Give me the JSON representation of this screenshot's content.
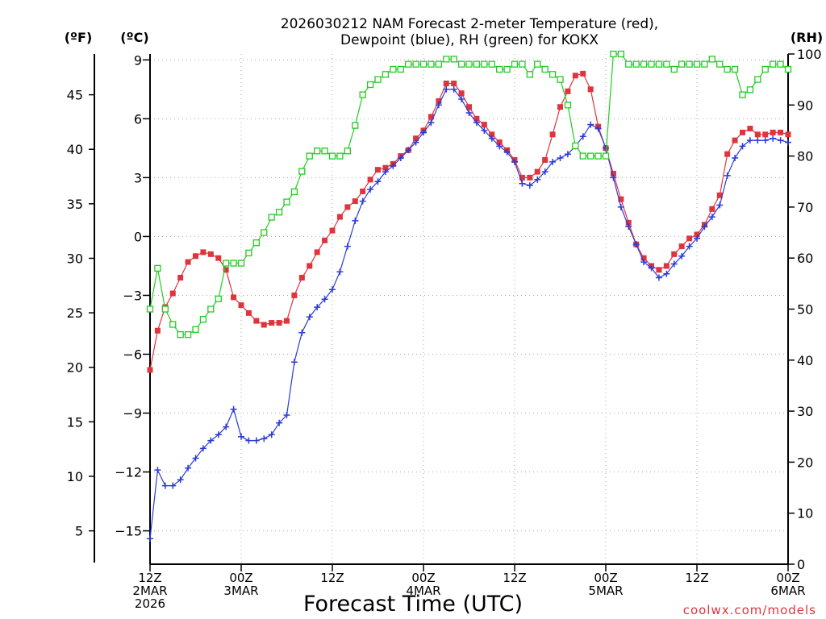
{
  "chart_data": {
    "type": "line",
    "title": "2026030212 NAM Forecast 2-meter Temperature (red),",
    "subtitle": "Dewpoint (blue), RH (green) for KOKX",
    "xlabel": "Forecast Time (UTC)",
    "credit": "coolwx.com/models",
    "units": {
      "fahrenheit": "(ºF)",
      "celsius": "(ºC)",
      "rh": "(RH)"
    },
    "x_unit": "forecast hour",
    "xlim": [
      0,
      84
    ],
    "x_ticks": [
      {
        "x": 0,
        "l1": "12Z",
        "l2": "2MAR",
        "l3": "2026"
      },
      {
        "x": 12,
        "l1": "00Z",
        "l2": "3MAR",
        "l3": ""
      },
      {
        "x": 24,
        "l1": "12Z",
        "l2": "",
        "l3": ""
      },
      {
        "x": 36,
        "l1": "00Z",
        "l2": "4MAR",
        "l3": ""
      },
      {
        "x": 48,
        "l1": "12Z",
        "l2": "",
        "l3": ""
      },
      {
        "x": 60,
        "l1": "00Z",
        "l2": "5MAR",
        "l3": ""
      },
      {
        "x": 72,
        "l1": "12Z",
        "l2": "",
        "l3": ""
      },
      {
        "x": 84,
        "l1": "00Z",
        "l2": "6MAR",
        "l3": ""
      }
    ],
    "y_celsius": {
      "ylim": [
        -16.7,
        9.3
      ],
      "ticks": [
        "9",
        "6",
        "3",
        "0",
        "−3",
        "−6",
        "−9",
        "−12",
        "−15"
      ],
      "tick_values": [
        9,
        6,
        3,
        0,
        -3,
        -6,
        -9,
        -12,
        -15
      ]
    },
    "y_fahrenheit": {
      "ticks": [
        "45",
        "40",
        "35",
        "30",
        "25",
        "20",
        "15",
        "10",
        "5"
      ],
      "tick_values": [
        45,
        40,
        35,
        30,
        25,
        20,
        15,
        10,
        5
      ]
    },
    "y_rh": {
      "ylim": [
        0,
        100
      ],
      "ticks": [
        "100",
        "90",
        "80",
        "70",
        "60",
        "50",
        "40",
        "30",
        "20",
        "10",
        "0"
      ],
      "tick_values": [
        100,
        90,
        80,
        70,
        60,
        50,
        40,
        30,
        20,
        10,
        0
      ]
    },
    "series": [
      {
        "name": "2-meter Temperature",
        "axis": "celsius",
        "color": "#e0343c",
        "marker": "filled-square",
        "values": [
          [
            0,
            -6.8
          ],
          [
            1,
            -4.8
          ],
          [
            2,
            -3.6
          ],
          [
            3,
            -2.9
          ],
          [
            4,
            -2.1
          ],
          [
            5,
            -1.3
          ],
          [
            6,
            -1.0
          ],
          [
            7,
            -0.8
          ],
          [
            8,
            -0.9
          ],
          [
            9,
            -1.1
          ],
          [
            10,
            -1.7
          ],
          [
            11,
            -3.1
          ],
          [
            12,
            -3.5
          ],
          [
            13,
            -3.9
          ],
          [
            14,
            -4.3
          ],
          [
            15,
            -4.5
          ],
          [
            16,
            -4.4
          ],
          [
            17,
            -4.4
          ],
          [
            18,
            -4.3
          ],
          [
            19,
            -3.0
          ],
          [
            20,
            -2.1
          ],
          [
            21,
            -1.5
          ],
          [
            22,
            -0.8
          ],
          [
            23,
            -0.2
          ],
          [
            24,
            0.3
          ],
          [
            25,
            1.0
          ],
          [
            26,
            1.5
          ],
          [
            27,
            1.8
          ],
          [
            28,
            2.3
          ],
          [
            29,
            2.9
          ],
          [
            30,
            3.4
          ],
          [
            31,
            3.5
          ],
          [
            32,
            3.7
          ],
          [
            33,
            4.1
          ],
          [
            34,
            4.4
          ],
          [
            35,
            5.0
          ],
          [
            36,
            5.4
          ],
          [
            37,
            6.1
          ],
          [
            38,
            6.9
          ],
          [
            39,
            7.8
          ],
          [
            40,
            7.8
          ],
          [
            41,
            7.3
          ],
          [
            42,
            6.6
          ],
          [
            43,
            6.0
          ],
          [
            44,
            5.7
          ],
          [
            45,
            5.2
          ],
          [
            46,
            4.8
          ],
          [
            47,
            4.4
          ],
          [
            48,
            3.9
          ],
          [
            49,
            3.0
          ],
          [
            50,
            3.0
          ],
          [
            51,
            3.3
          ],
          [
            52,
            3.9
          ],
          [
            53,
            5.2
          ],
          [
            54,
            6.6
          ],
          [
            55,
            7.4
          ],
          [
            56,
            8.2
          ],
          [
            57,
            8.3
          ],
          [
            58,
            7.5
          ],
          [
            59,
            5.6
          ],
          [
            60,
            4.5
          ],
          [
            61,
            3.2
          ],
          [
            62,
            1.9
          ],
          [
            63,
            0.7
          ],
          [
            64,
            -0.4
          ],
          [
            65,
            -1.1
          ],
          [
            66,
            -1.5
          ],
          [
            67,
            -1.7
          ],
          [
            68,
            -1.5
          ],
          [
            69,
            -0.9
          ],
          [
            70,
            -0.5
          ],
          [
            71,
            -0.1
          ],
          [
            72,
            0.1
          ],
          [
            73,
            0.6
          ],
          [
            74,
            1.4
          ],
          [
            75,
            2.1
          ],
          [
            76,
            4.2
          ],
          [
            77,
            4.9
          ],
          [
            78,
            5.3
          ],
          [
            79,
            5.5
          ],
          [
            80,
            5.2
          ],
          [
            81,
            5.2
          ],
          [
            82,
            5.3
          ],
          [
            83,
            5.3
          ],
          [
            84,
            5.2
          ]
        ]
      },
      {
        "name": "Dewpoint",
        "axis": "celsius",
        "color": "#2b3bd6",
        "marker": "plus",
        "values": [
          [
            0,
            -15.4
          ],
          [
            1,
            -11.9
          ],
          [
            2,
            -12.7
          ],
          [
            3,
            -12.7
          ],
          [
            4,
            -12.4
          ],
          [
            5,
            -11.8
          ],
          [
            6,
            -11.3
          ],
          [
            7,
            -10.8
          ],
          [
            8,
            -10.4
          ],
          [
            9,
            -10.1
          ],
          [
            10,
            -9.7
          ],
          [
            11,
            -8.8
          ],
          [
            12,
            -10.2
          ],
          [
            13,
            -10.4
          ],
          [
            14,
            -10.4
          ],
          [
            15,
            -10.3
          ],
          [
            16,
            -10.1
          ],
          [
            17,
            -9.5
          ],
          [
            18,
            -9.1
          ],
          [
            19,
            -6.4
          ],
          [
            20,
            -4.9
          ],
          [
            21,
            -4.1
          ],
          [
            22,
            -3.6
          ],
          [
            23,
            -3.2
          ],
          [
            24,
            -2.7
          ],
          [
            25,
            -1.8
          ],
          [
            26,
            -0.5
          ],
          [
            27,
            0.8
          ],
          [
            28,
            1.8
          ],
          [
            29,
            2.4
          ],
          [
            30,
            2.8
          ],
          [
            31,
            3.3
          ],
          [
            32,
            3.6
          ],
          [
            33,
            4.0
          ],
          [
            34,
            4.4
          ],
          [
            35,
            4.8
          ],
          [
            36,
            5.3
          ],
          [
            37,
            5.8
          ],
          [
            38,
            6.7
          ],
          [
            39,
            7.5
          ],
          [
            40,
            7.5
          ],
          [
            41,
            7.0
          ],
          [
            42,
            6.3
          ],
          [
            43,
            5.8
          ],
          [
            44,
            5.4
          ],
          [
            45,
            5.0
          ],
          [
            46,
            4.6
          ],
          [
            47,
            4.3
          ],
          [
            48,
            3.8
          ],
          [
            49,
            2.7
          ],
          [
            50,
            2.6
          ],
          [
            51,
            2.9
          ],
          [
            52,
            3.3
          ],
          [
            53,
            3.8
          ],
          [
            54,
            4.0
          ],
          [
            55,
            4.2
          ],
          [
            56,
            4.6
          ],
          [
            57,
            5.1
          ],
          [
            58,
            5.7
          ],
          [
            59,
            5.5
          ],
          [
            60,
            4.5
          ],
          [
            61,
            3.0
          ],
          [
            62,
            1.5
          ],
          [
            63,
            0.5
          ],
          [
            64,
            -0.4
          ],
          [
            65,
            -1.3
          ],
          [
            66,
            -1.6
          ],
          [
            67,
            -2.1
          ],
          [
            68,
            -1.9
          ],
          [
            69,
            -1.4
          ],
          [
            70,
            -1.0
          ],
          [
            71,
            -0.5
          ],
          [
            72,
            -0.1
          ],
          [
            73,
            0.5
          ],
          [
            74,
            1.0
          ],
          [
            75,
            1.6
          ],
          [
            76,
            3.1
          ],
          [
            77,
            4.0
          ],
          [
            78,
            4.6
          ],
          [
            79,
            4.9
          ],
          [
            80,
            4.9
          ],
          [
            81,
            4.9
          ],
          [
            82,
            5.0
          ],
          [
            83,
            4.9
          ],
          [
            84,
            4.8
          ]
        ]
      },
      {
        "name": "RH",
        "axis": "rh",
        "color": "#22cc22",
        "marker": "open-square",
        "values": [
          [
            0,
            50
          ],
          [
            1,
            58
          ],
          [
            2,
            50
          ],
          [
            3,
            47
          ],
          [
            4,
            45
          ],
          [
            5,
            45
          ],
          [
            6,
            46
          ],
          [
            7,
            48
          ],
          [
            8,
            50
          ],
          [
            9,
            52
          ],
          [
            10,
            59
          ],
          [
            11,
            59
          ],
          [
            12,
            59
          ],
          [
            13,
            61
          ],
          [
            14,
            63
          ],
          [
            15,
            65
          ],
          [
            16,
            68
          ],
          [
            17,
            69
          ],
          [
            18,
            71
          ],
          [
            19,
            73
          ],
          [
            20,
            77
          ],
          [
            21,
            80
          ],
          [
            22,
            81
          ],
          [
            23,
            81
          ],
          [
            24,
            80
          ],
          [
            25,
            80
          ],
          [
            26,
            81
          ],
          [
            27,
            86
          ],
          [
            28,
            92
          ],
          [
            29,
            94
          ],
          [
            30,
            95
          ],
          [
            31,
            96
          ],
          [
            32,
            97
          ],
          [
            33,
            97
          ],
          [
            34,
            98
          ],
          [
            35,
            98
          ],
          [
            36,
            98
          ],
          [
            37,
            98
          ],
          [
            38,
            98
          ],
          [
            39,
            99
          ],
          [
            40,
            99
          ],
          [
            41,
            98
          ],
          [
            42,
            98
          ],
          [
            43,
            98
          ],
          [
            44,
            98
          ],
          [
            45,
            98
          ],
          [
            46,
            97
          ],
          [
            47,
            97
          ],
          [
            48,
            98
          ],
          [
            49,
            98
          ],
          [
            50,
            96
          ],
          [
            51,
            98
          ],
          [
            52,
            97
          ],
          [
            53,
            96
          ],
          [
            54,
            95
          ],
          [
            55,
            90
          ],
          [
            56,
            82
          ],
          [
            57,
            80
          ],
          [
            58,
            80
          ],
          [
            59,
            80
          ],
          [
            60,
            80
          ],
          [
            61,
            100
          ],
          [
            62,
            100
          ],
          [
            63,
            98
          ],
          [
            64,
            98
          ],
          [
            65,
            98
          ],
          [
            66,
            98
          ],
          [
            67,
            98
          ],
          [
            68,
            98
          ],
          [
            69,
            97
          ],
          [
            70,
            98
          ],
          [
            71,
            98
          ],
          [
            72,
            98
          ],
          [
            73,
            98
          ],
          [
            74,
            99
          ],
          [
            75,
            98
          ],
          [
            76,
            97
          ],
          [
            77,
            97
          ],
          [
            78,
            92
          ],
          [
            79,
            93
          ],
          [
            80,
            95
          ],
          [
            81,
            97
          ],
          [
            82,
            98
          ],
          [
            83,
            98
          ],
          [
            84,
            97
          ]
        ]
      }
    ]
  }
}
